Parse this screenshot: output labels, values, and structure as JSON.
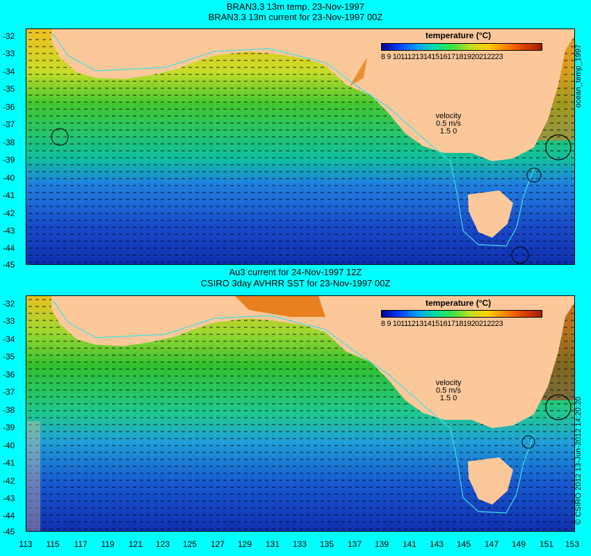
{
  "top_panel": {
    "title_line1": "BRAN3.3 13m temp. 23-Nov-1997",
    "title_line2": "BRAN3.3 13m current for 23-Nov-1997 00Z",
    "side_label": "ocean_temp_1997"
  },
  "bottom_panel": {
    "title_line1": "Au3 current for 24-Nov-1997 12Z",
    "title_line2": "CSIRO 3day AVHRR SST for 23-Nov-1997 00Z",
    "side_label": "© CSIRO 2012  13-Jun-2012 14:20:20"
  },
  "legend": {
    "title": "temperature (°C)",
    "ticks": "8  9 1011121314151617181920212223"
  },
  "velocity_key": {
    "label": "velocity",
    "value": "0.5 m/s",
    "scale": "1.5 0"
  },
  "latitude_labels": [
    "-32",
    "-33",
    "-34",
    "-35",
    "-36",
    "-37",
    "-38",
    "-39",
    "-40",
    "-41",
    "-42",
    "-43",
    "-44",
    "-45"
  ],
  "longitude_labels": [
    "113",
    "115",
    "117",
    "119",
    "121",
    "123",
    "125",
    "127",
    "129",
    "131",
    "133",
    "135",
    "137",
    "139",
    "141",
    "143",
    "145",
    "147",
    "149",
    "151",
    "153"
  ],
  "colors": {
    "land": "#fcc89a",
    "background": "#00ffff",
    "isobath": "#40e0e0"
  }
}
